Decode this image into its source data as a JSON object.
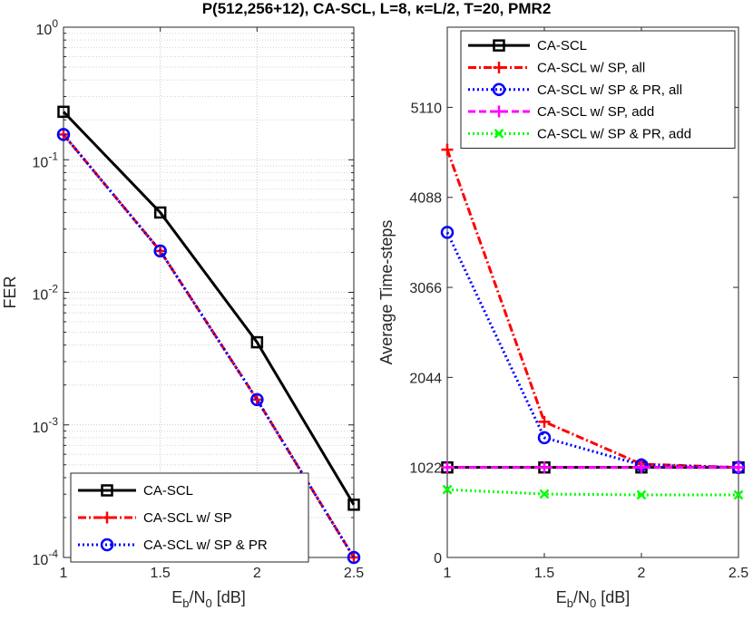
{
  "chart_data": [
    {
      "type": "line",
      "title": "P(512,256+12), CA-SCL, L=8, κ=L/2, T=20, PMR2",
      "xlabel_main": "E",
      "xlabel_sub1": "b",
      "xlabel_mid": "/N",
      "xlabel_sub2": "0",
      "xlabel_tail": " [dB]",
      "ylabel": "FER",
      "yscale": "log",
      "xlim": [
        1,
        2.5
      ],
      "ylim": [
        0.0001,
        1
      ],
      "grid": true,
      "legend_position": "bottom-left",
      "x_ticks": [
        "1",
        "1.5",
        "2",
        "2.5"
      ],
      "y_ticks": [
        {
          "base": "10",
          "exp": "0"
        },
        {
          "base": "10",
          "exp": "-1"
        },
        {
          "base": "10",
          "exp": "-2"
        },
        {
          "base": "10",
          "exp": "-3"
        },
        {
          "base": "10",
          "exp": "-4"
        }
      ],
      "x": [
        1,
        1.5,
        2,
        2.5
      ],
      "series": [
        {
          "name": "CA-SCL",
          "color": "#000000",
          "dash": "solid",
          "marker": "square",
          "values": [
            0.23,
            0.04,
            0.0042,
            0.00025
          ]
        },
        {
          "name": "CA-SCL w/ SP",
          "color": "#ff0000",
          "dash": "dashdot",
          "marker": "plus",
          "values": [
            0.155,
            0.0205,
            0.00155,
            0.0001
          ]
        },
        {
          "name": "CA-SCL w/ SP & PR",
          "color": "#0000ff",
          "dash": "dotted",
          "marker": "circle",
          "values": [
            0.155,
            0.0205,
            0.00155,
            0.0001
          ]
        }
      ]
    },
    {
      "type": "line",
      "xlabel_main": "E",
      "xlabel_sub1": "b",
      "xlabel_mid": "/N",
      "xlabel_sub2": "0",
      "xlabel_tail": " [dB]",
      "ylabel": "Average Time-steps",
      "xlim": [
        1,
        2.5
      ],
      "ylim": [
        0,
        6020
      ],
      "grid": false,
      "legend_position": "top-right",
      "x_ticks": [
        "1",
        "1.5",
        "2",
        "2.5"
      ],
      "y_ticks": [
        "0",
        "1022",
        "2044",
        "3066",
        "4088",
        "5110"
      ],
      "x": [
        1,
        1.5,
        2,
        2.5
      ],
      "series": [
        {
          "name": "CA-SCL",
          "color": "#000000",
          "dash": "solid",
          "marker": "square",
          "values": [
            1022,
            1022,
            1022,
            1022
          ]
        },
        {
          "name": "CA-SCL w/ SP, all",
          "color": "#ff0000",
          "dash": "dashdot",
          "marker": "plus",
          "values": [
            4630,
            1540,
            1060,
            1022
          ]
        },
        {
          "name": "CA-SCL w/ SP & PR, all",
          "color": "#0000ff",
          "dash": "dotted",
          "marker": "circle",
          "values": [
            3690,
            1360,
            1050,
            1022
          ]
        },
        {
          "name": "CA-SCL w/ SP, add",
          "color": "#ff00ff",
          "dash": "dashed",
          "marker": "plus",
          "values": [
            1022,
            1022,
            1022,
            1022
          ]
        },
        {
          "name": "CA-SCL w/ SP & PR, add",
          "color": "#00ff00",
          "dash": "dotted",
          "marker": "x",
          "values": [
            770,
            720,
            710,
            710
          ]
        }
      ]
    }
  ]
}
